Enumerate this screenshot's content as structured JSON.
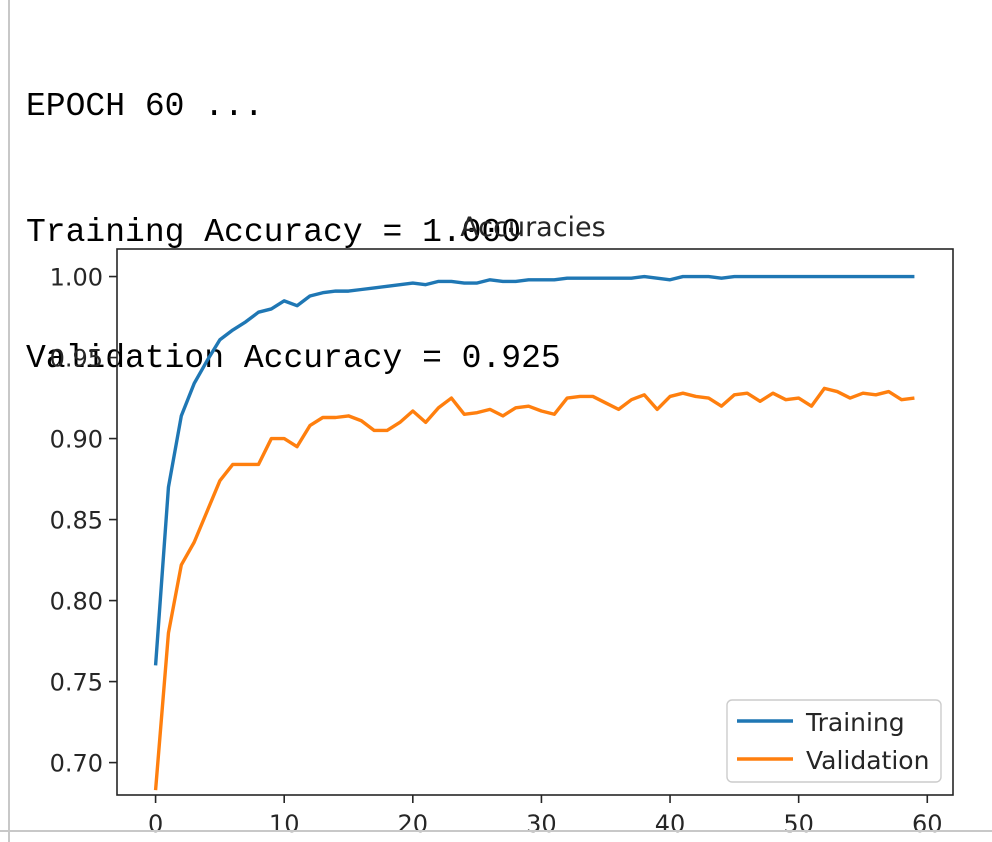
{
  "console": {
    "lines": [
      "EPOCH 60 ...",
      "Training Accuracy = 1.000",
      "Validation Accuracy = 0.925"
    ]
  },
  "chart_data": {
    "type": "line",
    "title": "Accuracies",
    "xlabel": "",
    "ylabel": "",
    "xlim": [
      -3,
      62
    ],
    "ylim": [
      0.68,
      1.017
    ],
    "x_ticks": [
      0,
      10,
      20,
      30,
      40,
      50,
      60
    ],
    "y_ticks": [
      0.7,
      0.75,
      0.8,
      0.85,
      0.9,
      0.95,
      1.0
    ],
    "y_tick_labels": [
      "0.70",
      "0.75",
      "0.80",
      "0.85",
      "0.90",
      "0.95",
      "1.00"
    ],
    "grid": false,
    "legend": "lower-right",
    "x": [
      0,
      1,
      2,
      3,
      4,
      5,
      6,
      7,
      8,
      9,
      10,
      11,
      12,
      13,
      14,
      15,
      16,
      17,
      18,
      19,
      20,
      21,
      22,
      23,
      24,
      25,
      26,
      27,
      28,
      29,
      30,
      31,
      32,
      33,
      34,
      35,
      36,
      37,
      38,
      39,
      40,
      41,
      42,
      43,
      44,
      45,
      46,
      47,
      48,
      49,
      50,
      51,
      52,
      53,
      54,
      55,
      56,
      57,
      58,
      59
    ],
    "series": [
      {
        "name": "Training",
        "color": "#1f77b4",
        "values": [
          0.76,
          0.87,
          0.914,
          0.934,
          0.948,
          0.961,
          0.967,
          0.972,
          0.978,
          0.98,
          0.985,
          0.982,
          0.988,
          0.99,
          0.991,
          0.991,
          0.992,
          0.993,
          0.994,
          0.995,
          0.996,
          0.995,
          0.997,
          0.997,
          0.996,
          0.996,
          0.998,
          0.997,
          0.997,
          0.998,
          0.998,
          0.998,
          0.999,
          0.999,
          0.999,
          0.999,
          0.999,
          0.999,
          1.0,
          0.999,
          0.998,
          1.0,
          1.0,
          1.0,
          0.999,
          1.0,
          1.0,
          1.0,
          1.0,
          1.0,
          1.0,
          1.0,
          1.0,
          1.0,
          1.0,
          1.0,
          1.0,
          1.0,
          1.0,
          1.0
        ]
      },
      {
        "name": "Validation",
        "color": "#ff7f0e",
        "values": [
          0.683,
          0.78,
          0.822,
          0.836,
          0.855,
          0.874,
          0.884,
          0.884,
          0.884,
          0.9,
          0.9,
          0.895,
          0.908,
          0.913,
          0.913,
          0.914,
          0.911,
          0.905,
          0.905,
          0.91,
          0.917,
          0.91,
          0.919,
          0.925,
          0.915,
          0.916,
          0.918,
          0.914,
          0.919,
          0.92,
          0.917,
          0.915,
          0.925,
          0.926,
          0.926,
          0.922,
          0.918,
          0.924,
          0.927,
          0.918,
          0.926,
          0.928,
          0.926,
          0.925,
          0.92,
          0.927,
          0.928,
          0.923,
          0.928,
          0.924,
          0.925,
          0.92,
          0.931,
          0.929,
          0.925,
          0.928,
          0.927,
          0.929,
          0.924,
          0.925
        ]
      }
    ]
  }
}
